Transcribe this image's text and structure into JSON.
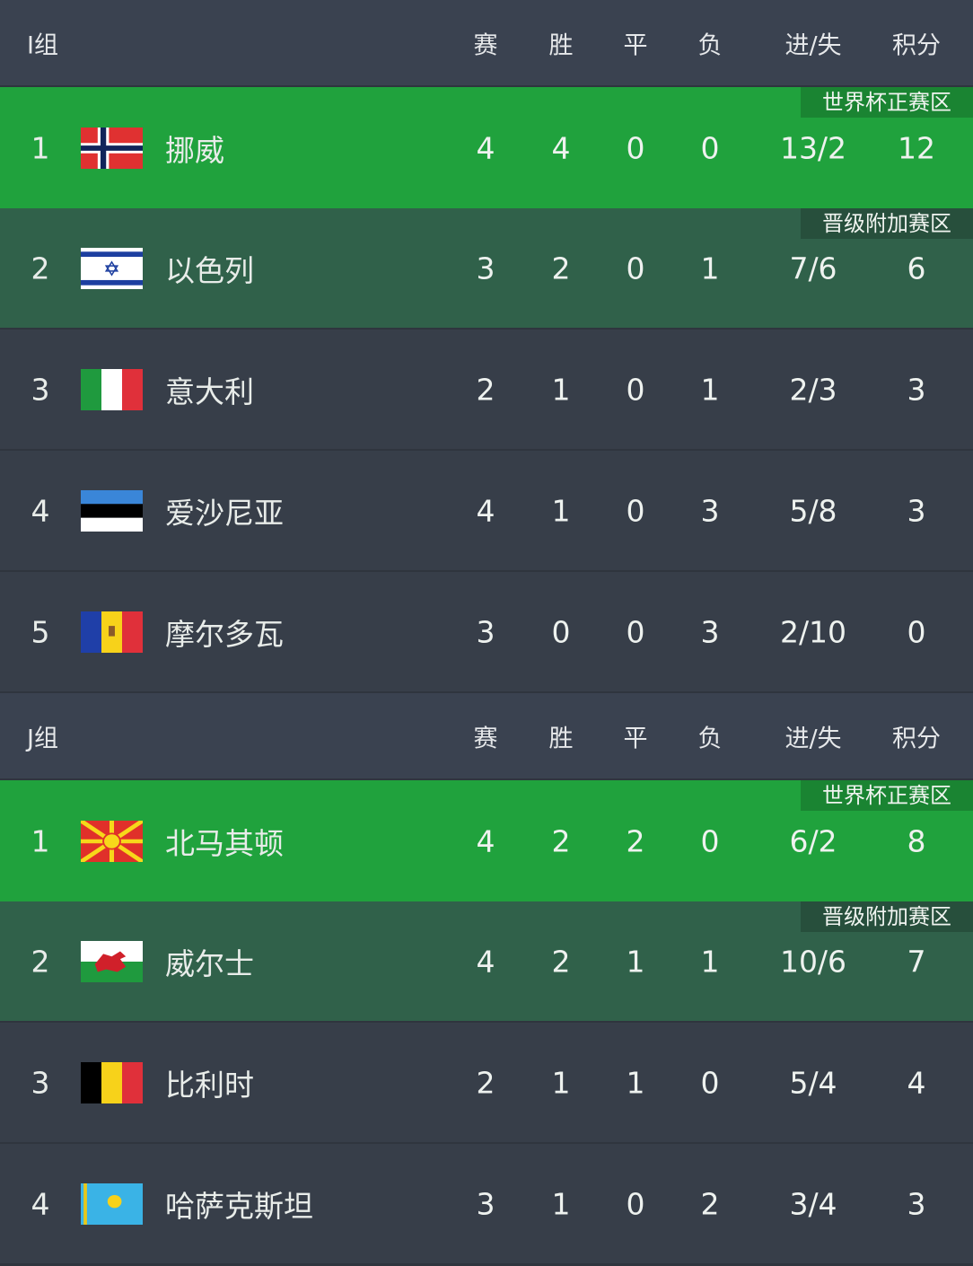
{
  "columns": [
    "赛",
    "胜",
    "平",
    "负",
    "进/失",
    "积分"
  ],
  "zones": {
    "qualify": "世界杯正赛区",
    "playoff": "晋级附加赛区"
  },
  "colors": {
    "header": "#3a4250",
    "qualify": "#20a23d",
    "playoff": "#30614a",
    "row": "#373e49"
  },
  "groups": [
    {
      "name": "I组",
      "rows": [
        {
          "rank": "1",
          "flag": "norway-flag",
          "team": "挪威",
          "p": "4",
          "w": "4",
          "d": "0",
          "l": "0",
          "gd": "13/2",
          "pts": "12",
          "zone": "qualify"
        },
        {
          "rank": "2",
          "flag": "israel-flag",
          "team": "以色列",
          "p": "3",
          "w": "2",
          "d": "0",
          "l": "1",
          "gd": "7/6",
          "pts": "6",
          "zone": "playoff"
        },
        {
          "rank": "3",
          "flag": "italy-flag",
          "team": "意大利",
          "p": "2",
          "w": "1",
          "d": "0",
          "l": "1",
          "gd": "2/3",
          "pts": "3"
        },
        {
          "rank": "4",
          "flag": "estonia-flag",
          "team": "爱沙尼亚",
          "p": "4",
          "w": "1",
          "d": "0",
          "l": "3",
          "gd": "5/8",
          "pts": "3"
        },
        {
          "rank": "5",
          "flag": "moldova-flag",
          "team": "摩尔多瓦",
          "p": "3",
          "w": "0",
          "d": "0",
          "l": "3",
          "gd": "2/10",
          "pts": "0"
        }
      ]
    },
    {
      "name": "J组",
      "rows": [
        {
          "rank": "1",
          "flag": "north-macedonia-flag",
          "team": "北马其顿",
          "p": "4",
          "w": "2",
          "d": "2",
          "l": "0",
          "gd": "6/2",
          "pts": "8",
          "zone": "qualify"
        },
        {
          "rank": "2",
          "flag": "wales-flag",
          "team": "威尔士",
          "p": "4",
          "w": "2",
          "d": "1",
          "l": "1",
          "gd": "10/6",
          "pts": "7",
          "zone": "playoff"
        },
        {
          "rank": "3",
          "flag": "belgium-flag",
          "team": "比利时",
          "p": "2",
          "w": "1",
          "d": "1",
          "l": "0",
          "gd": "5/4",
          "pts": "4"
        },
        {
          "rank": "4",
          "flag": "kazakhstan-flag",
          "team": "哈萨克斯坦",
          "p": "3",
          "w": "1",
          "d": "0",
          "l": "2",
          "gd": "3/4",
          "pts": "3"
        }
      ]
    }
  ]
}
